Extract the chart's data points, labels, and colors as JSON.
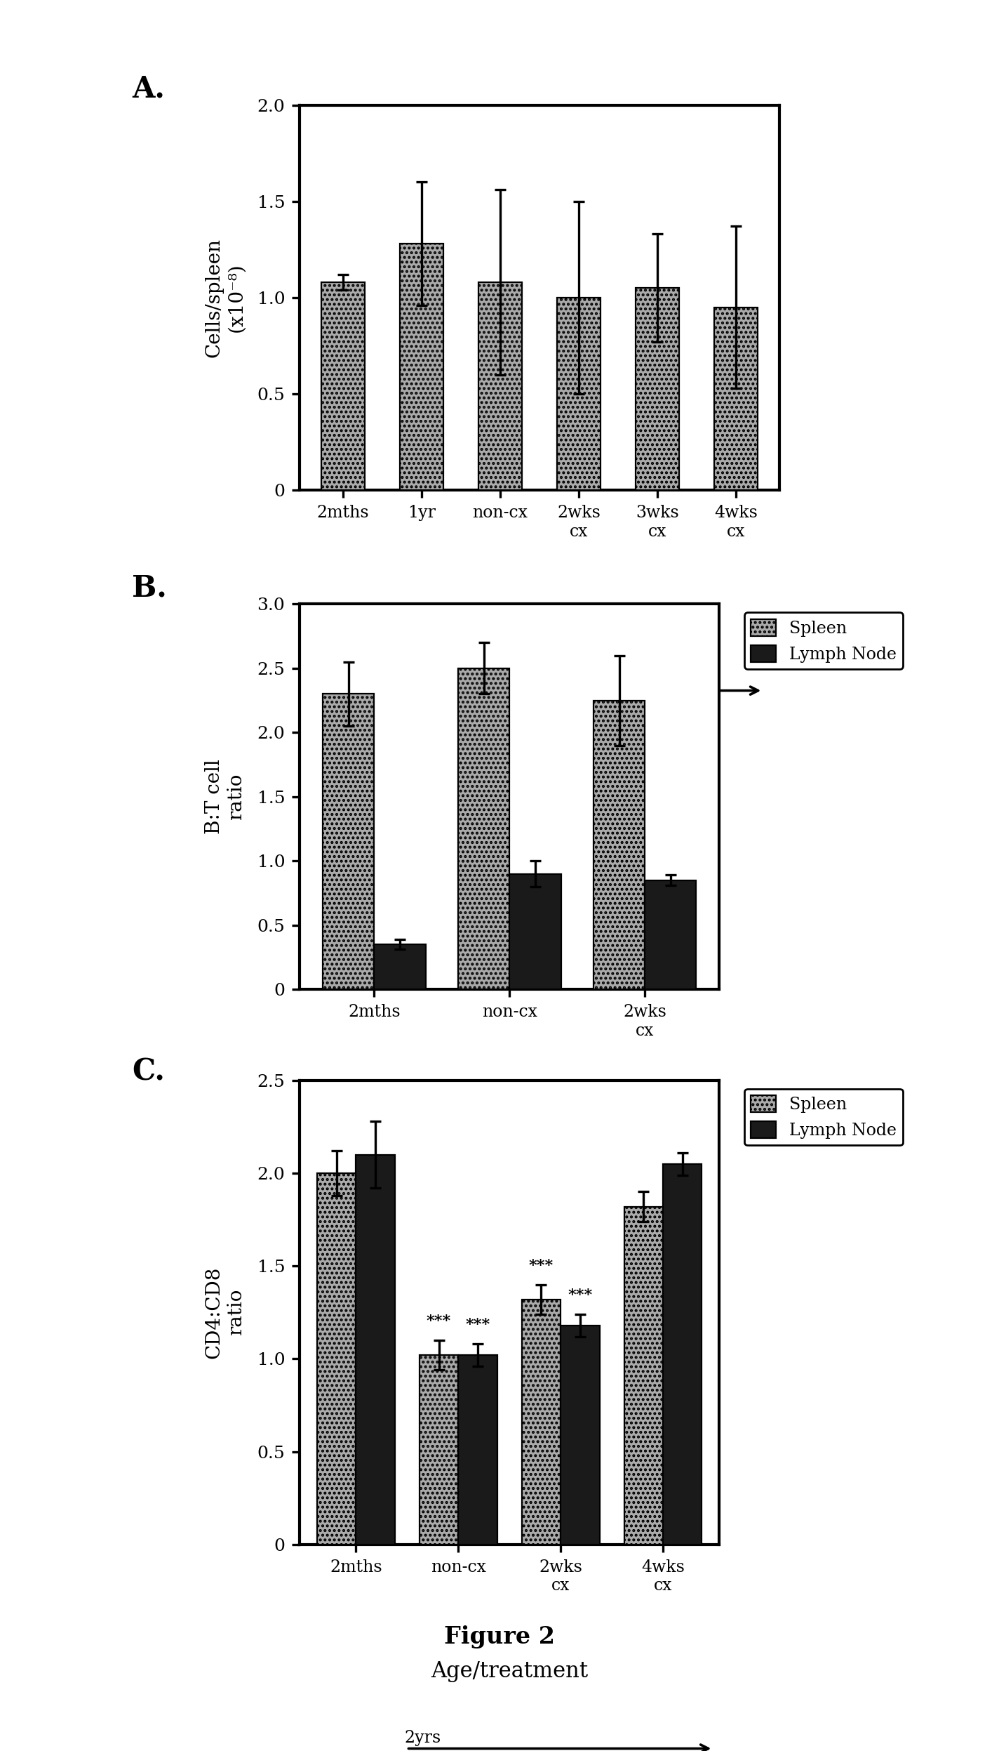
{
  "panel_A": {
    "categories": [
      "2mths",
      "1yr",
      "non-cx",
      "2wks\ncx",
      "3wks\ncx",
      "4wks\ncx"
    ],
    "values": [
      1.08,
      1.28,
      1.08,
      1.0,
      1.05,
      0.95
    ],
    "errors": [
      0.04,
      0.32,
      0.48,
      0.5,
      0.28,
      0.42
    ],
    "ylabel": "Cells/spleen\n(x10⁻⁸)",
    "ylim": [
      0,
      2.0
    ],
    "yticks": [
      0,
      0.5,
      1.0,
      1.5,
      2.0
    ],
    "xlabel_main": "Age/treatment",
    "xlabel_sub": "2yrs",
    "label": "A."
  },
  "panel_B": {
    "categories": [
      "2mths",
      "non-cx",
      "2wks\ncx"
    ],
    "spleen_values": [
      2.3,
      2.5,
      2.25
    ],
    "spleen_errors": [
      0.25,
      0.2,
      0.35
    ],
    "lymph_values": [
      0.35,
      0.9,
      0.85
    ],
    "lymph_errors": [
      0.04,
      0.1,
      0.04
    ],
    "ylabel": "B:T cell\nratio",
    "ylim": [
      0,
      3.0
    ],
    "yticks": [
      0,
      0.5,
      1.0,
      1.5,
      2.0,
      2.5,
      3.0
    ],
    "xlabel_main": "Age/treatment",
    "xlabel_sub": "2yrs",
    "label": "B."
  },
  "panel_C": {
    "categories": [
      "2mths",
      "non-cx",
      "2wks\ncx",
      "4wks\ncx"
    ],
    "spleen_values": [
      2.0,
      1.02,
      1.32,
      1.82
    ],
    "spleen_errors": [
      0.12,
      0.08,
      0.08,
      0.08
    ],
    "lymph_values": [
      2.1,
      1.02,
      1.18,
      2.05
    ],
    "lymph_errors": [
      0.18,
      0.06,
      0.06,
      0.06
    ],
    "stars": [
      "",
      "***",
      "***",
      ""
    ],
    "ylabel": "CD4:CD8\nratio",
    "ylim": [
      0,
      2.5
    ],
    "yticks": [
      0,
      0.5,
      1.0,
      1.5,
      2.0,
      2.5
    ],
    "xlabel_main": "Age/treatment",
    "xlabel_sub": "2yrs",
    "label": "C."
  },
  "spleen_color": "#aaaaaa",
  "lymph_color": "#1a1a1a",
  "legend_spleen_label": "Spleen",
  "legend_lymph_label": "Lymph Node",
  "figure_label": "Figure 2",
  "background_color": "#ffffff",
  "bar_width": 0.38,
  "single_bar_width": 0.55
}
